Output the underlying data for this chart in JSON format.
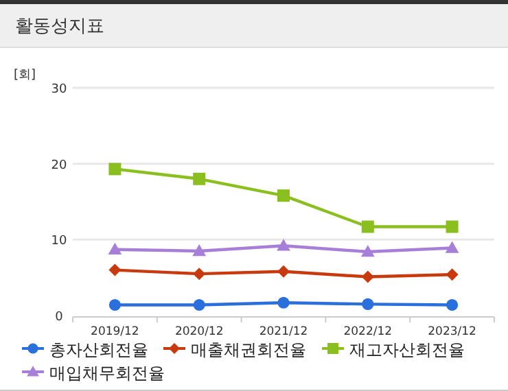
{
  "chart_data": {
    "type": "line",
    "title": "활동성지표",
    "ylabel": "[회]",
    "categories": [
      "2019/12",
      "2020/12",
      "2021/12",
      "2022/12",
      "2023/12"
    ],
    "series": [
      {
        "name": "총자산회전율",
        "color": "#2a6fdb",
        "marker": "circle",
        "values": [
          1.4,
          1.4,
          1.7,
          1.5,
          1.4
        ]
      },
      {
        "name": "매출채권회전율",
        "color": "#c8390e",
        "marker": "diamond",
        "values": [
          6.0,
          5.5,
          5.8,
          5.1,
          5.4
        ]
      },
      {
        "name": "재고자산회전율",
        "color": "#8bbf1f",
        "marker": "square",
        "values": [
          19.3,
          18.0,
          15.8,
          11.7,
          11.7
        ]
      },
      {
        "name": "매입채무회전율",
        "color": "#a77fd9",
        "marker": "triangle",
        "values": [
          8.7,
          8.5,
          9.2,
          8.4,
          8.9
        ]
      }
    ],
    "ylim": [
      0,
      30
    ],
    "yticks": [
      0,
      10,
      20,
      30
    ],
    "grid": "y",
    "legend": "bottom",
    "line_style": "solid"
  }
}
